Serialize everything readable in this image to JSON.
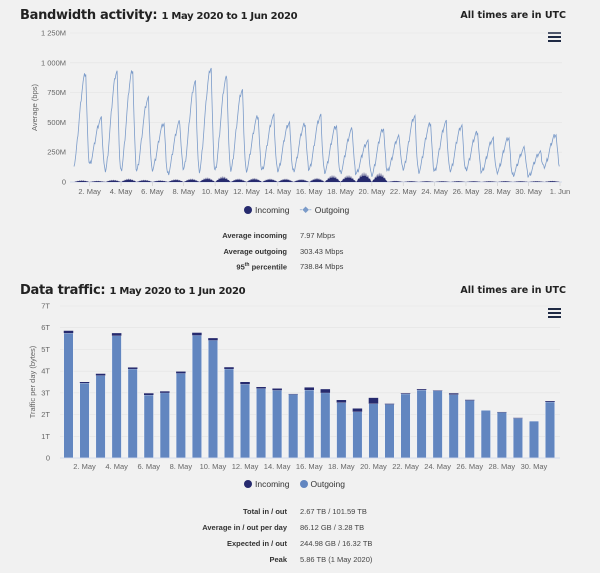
{
  "bandwidth": {
    "title": "Bandwidth activity:",
    "range": "1 May 2020 to 1 Jun 2020",
    "utc_note": "All times are in UTC",
    "menu_icon": "hamburger-icon",
    "legend": {
      "incoming": "Incoming",
      "outgoing": "Outgoing"
    },
    "stats": [
      {
        "label": "Average incoming",
        "value": "7.97 Mbps"
      },
      {
        "label": "Average outgoing",
        "value": "303.43 Mbps"
      },
      {
        "label": "95",
        "sup": "th",
        "label_rest": " percentile",
        "value": "738.84 Mbps"
      }
    ]
  },
  "traffic": {
    "title": "Data traffic:",
    "range": "1 May 2020 to 1 Jun 2020",
    "utc_note": "All times are in UTC",
    "menu_icon": "hamburger-icon",
    "legend": {
      "incoming": "Incoming",
      "outgoing": "Outgoing"
    },
    "stats": [
      {
        "label": "Total in / out",
        "value": "2.67 TB / 101.59 TB"
      },
      {
        "label": "Average in / out per day",
        "value": "86.12 GB / 3.28 TB"
      },
      {
        "label": "Expected in / out",
        "value": "244.98 GB / 16.32 TB"
      },
      {
        "label": "Peak",
        "value": "5.86 TB (1 May 2020)"
      }
    ]
  },
  "colors": {
    "incoming": "#262a6e",
    "outgoing_line": "#7b9bc9",
    "outgoing_bar": "#6286c0",
    "grid": "#e4e4e4"
  },
  "chart_data": [
    {
      "type": "line",
      "title": "Bandwidth activity",
      "ylabel": "Average (bps)",
      "ylim": [
        0,
        1250
      ],
      "yticks": [
        "0",
        "250M",
        "500M",
        "750M",
        "1 000M",
        "1 250M"
      ],
      "xticks": [
        "2. May",
        "4. May",
        "6. May",
        "8. May",
        "10. May",
        "12. May",
        "14. May",
        "16. May",
        "18. May",
        "20. May",
        "22. May",
        "24. May",
        "26. May",
        "28. May",
        "30. May",
        "1. Jun"
      ],
      "units": "Mbps",
      "days": 31,
      "series": [
        {
          "name": "Outgoing",
          "daily_peak": [
            910,
            530,
            930,
            940,
            700,
            490,
            500,
            840,
            960,
            880,
            770,
            550,
            550,
            500,
            490,
            555,
            470,
            440,
            340,
            450,
            380,
            550,
            490,
            500,
            475,
            420,
            360,
            370,
            280,
            250,
            400
          ],
          "daily_trough": [
            150,
            150,
            90,
            90,
            90,
            100,
            70,
            110,
            90,
            90,
            90,
            100,
            100,
            90,
            90,
            100,
            80,
            80,
            70,
            60,
            90,
            100,
            90,
            90,
            90,
            100,
            80,
            80,
            60,
            50,
            130
          ]
        },
        {
          "name": "Incoming",
          "daily_peak": [
            15,
            10,
            20,
            30,
            20,
            15,
            25,
            30,
            40,
            50,
            30,
            35,
            30,
            30,
            25,
            35,
            60,
            60,
            85,
            80,
            10,
            8,
            8,
            8,
            8,
            8,
            8,
            8,
            8,
            8,
            10
          ]
        }
      ]
    },
    {
      "type": "bar",
      "stacked": true,
      "title": "Data traffic",
      "ylabel": "Traffic per day (bytes)",
      "ylim": [
        0,
        7
      ],
      "yticks": [
        "0",
        "1T",
        "2T",
        "3T",
        "4T",
        "5T",
        "6T",
        "7T"
      ],
      "xticks": [
        "2. May",
        "4. May",
        "6. May",
        "8. May",
        "10. May",
        "12. May",
        "14. May",
        "16. May",
        "18. May",
        "20. May",
        "22. May",
        "24. May",
        "26. May",
        "28. May",
        "30. May"
      ],
      "units": "TB",
      "series": [
        {
          "name": "Outgoing",
          "values": [
            5.75,
            3.45,
            3.8,
            5.63,
            4.1,
            2.9,
            3.0,
            3.9,
            5.65,
            5.42,
            4.1,
            3.4,
            3.2,
            3.12,
            2.93,
            3.13,
            3.0,
            2.55,
            2.13,
            2.5,
            2.47,
            2.95,
            3.13,
            3.1,
            2.92,
            2.65,
            2.2,
            2.1,
            1.83,
            1.7,
            2.58
          ]
        },
        {
          "name": "Incoming",
          "values": [
            0.11,
            0.05,
            0.08,
            0.12,
            0.07,
            0.08,
            0.07,
            0.08,
            0.12,
            0.1,
            0.08,
            0.1,
            0.07,
            0.08,
            0.02,
            0.12,
            0.17,
            0.12,
            0.15,
            0.27,
            0.03,
            0.03,
            0.04,
            0.02,
            0.06,
            0.03,
            0.0,
            0.02,
            0.02,
            0.0,
            0.04
          ]
        }
      ]
    }
  ]
}
